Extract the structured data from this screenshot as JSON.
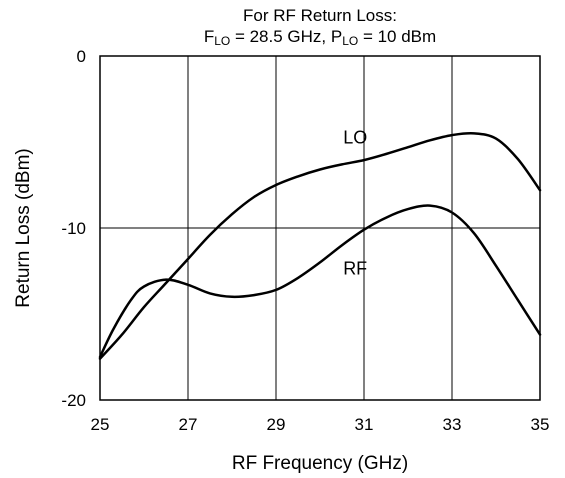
{
  "title": {
    "line1": "For RF Return Loss:",
    "lo_f_prefix": "F",
    "lo_f_sub": "LO",
    "lo_f_value": " = 28.5 GHz, ",
    "lo_p_prefix": "P",
    "lo_p_sub": "LO",
    "lo_p_value": " = 10 dBm"
  },
  "chart_data": {
    "type": "line",
    "xlabel": "RF Frequency (GHz)",
    "ylabel": "Return Loss (dBm)",
    "xlim": [
      25,
      35
    ],
    "ylim": [
      -20,
      0
    ],
    "x_ticks": [
      25,
      27,
      29,
      31,
      33,
      35
    ],
    "y_ticks": [
      0,
      -10,
      -20
    ],
    "grid": true,
    "series": [
      {
        "name": "LO",
        "color": "#000000",
        "points": [
          [
            25,
            -17.6
          ],
          [
            25.5,
            -16.2
          ],
          [
            26,
            -14.6
          ],
          [
            26.5,
            -13.2
          ],
          [
            27,
            -11.8
          ],
          [
            27.5,
            -10.4
          ],
          [
            28,
            -9.2
          ],
          [
            28.5,
            -8.2
          ],
          [
            29,
            -7.5
          ],
          [
            29.5,
            -7.0
          ],
          [
            30,
            -6.6
          ],
          [
            30.5,
            -6.3
          ],
          [
            31,
            -6.05
          ],
          [
            31.5,
            -5.7
          ],
          [
            32,
            -5.3
          ],
          [
            32.5,
            -4.9
          ],
          [
            33,
            -4.6
          ],
          [
            33.5,
            -4.5
          ],
          [
            34,
            -4.8
          ],
          [
            34.5,
            -6.0
          ],
          [
            35,
            -7.8
          ]
        ],
        "label_at": [
          30.8,
          -5.1
        ]
      },
      {
        "name": "RF",
        "color": "#000000",
        "points": [
          [
            25,
            -17.5
          ],
          [
            25.3,
            -15.9
          ],
          [
            25.7,
            -14.2
          ],
          [
            26,
            -13.4
          ],
          [
            26.5,
            -13.0
          ],
          [
            27,
            -13.3
          ],
          [
            27.5,
            -13.8
          ],
          [
            28,
            -14.0
          ],
          [
            28.5,
            -13.9
          ],
          [
            29,
            -13.6
          ],
          [
            29.5,
            -12.9
          ],
          [
            30,
            -12.0
          ],
          [
            30.5,
            -11.0
          ],
          [
            31,
            -10.1
          ],
          [
            31.5,
            -9.4
          ],
          [
            32,
            -8.9
          ],
          [
            32.5,
            -8.7
          ],
          [
            33,
            -9.1
          ],
          [
            33.5,
            -10.3
          ],
          [
            34,
            -12.2
          ],
          [
            34.5,
            -14.2
          ],
          [
            35,
            -16.2
          ]
        ],
        "label_at": [
          30.8,
          -12.7
        ]
      }
    ]
  }
}
